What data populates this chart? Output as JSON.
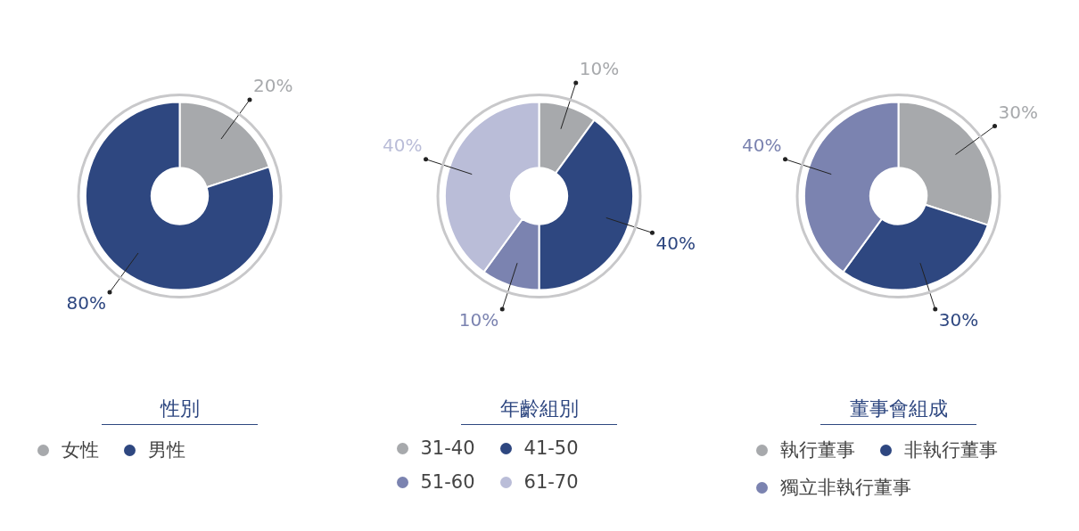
{
  "chart_data": [
    {
      "type": "donut",
      "title": "性別",
      "categories": [
        "女性",
        "男性"
      ],
      "values": [
        20,
        80
      ],
      "colors": [
        "#a7a9ac",
        "#2e4780"
      ],
      "value_labels": [
        "20%",
        "80%"
      ],
      "legend": "bottom"
    },
    {
      "type": "donut",
      "title": "年齡組別",
      "categories": [
        "31-40",
        "41-50",
        "51-60",
        "61-70"
      ],
      "values": [
        10,
        40,
        10,
        40
      ],
      "colors": [
        "#a7a9ac",
        "#2e4780",
        "#7b83b0",
        "#babdd8"
      ],
      "value_labels": [
        "10%",
        "40%",
        "10%",
        "40%"
      ],
      "legend": "bottom"
    },
    {
      "type": "donut",
      "title": "董事會組成",
      "categories": [
        "執行董事",
        "非執行董事",
        "獨立非執行董事"
      ],
      "values": [
        30,
        30,
        40
      ],
      "colors": [
        "#a7a9ac",
        "#2e4780",
        "#7b83b0"
      ],
      "value_labels": [
        "30%",
        "30%",
        "40%"
      ],
      "legend": "bottom"
    }
  ]
}
